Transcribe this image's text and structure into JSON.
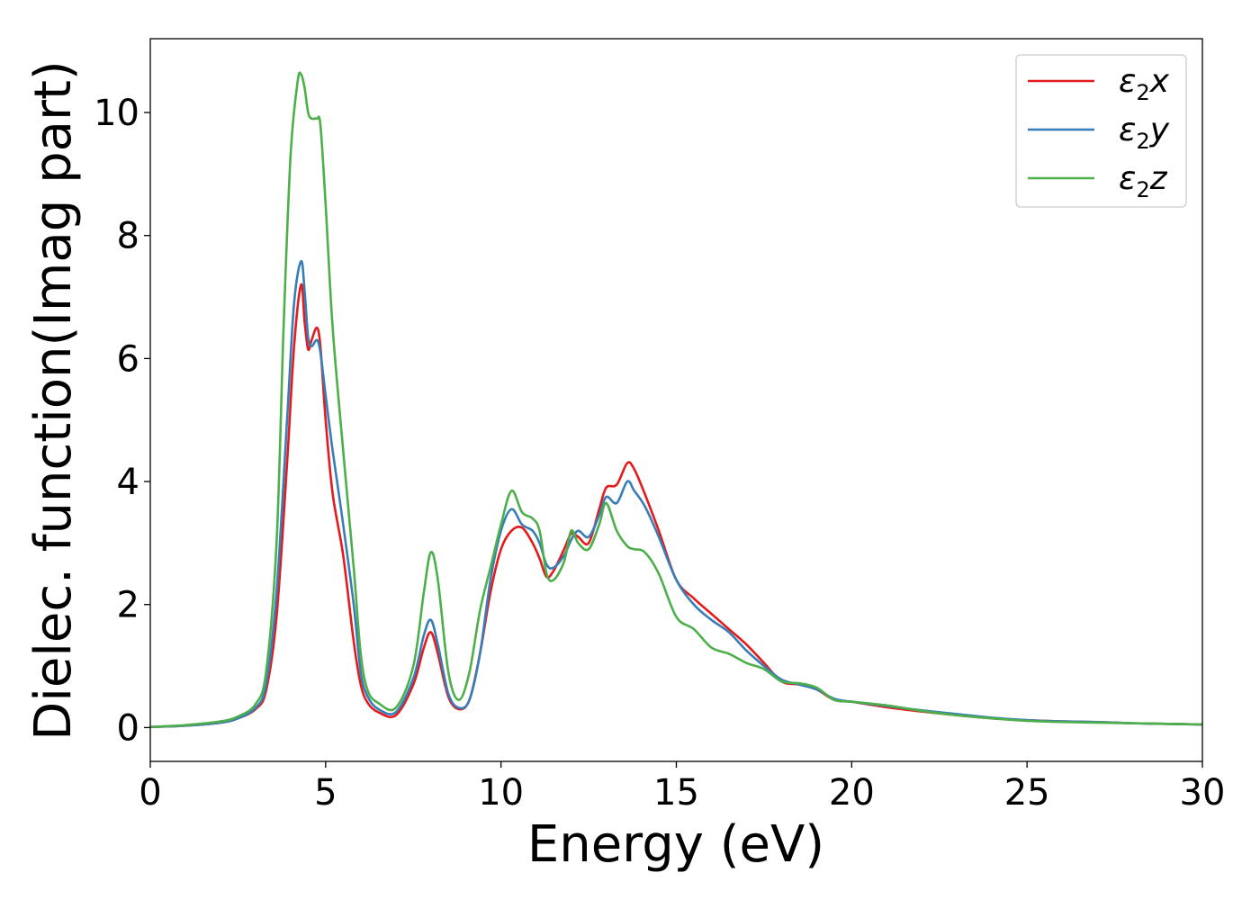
{
  "chart_data": {
    "type": "line",
    "title": "",
    "xlabel": "Energy (eV)",
    "ylabel": "Dielec. function(Imag part)",
    "xlim": [
      0,
      30
    ],
    "ylim": [
      -0.55,
      11.2
    ],
    "xticks": [
      0,
      5,
      10,
      15,
      20,
      25,
      30
    ],
    "yticks": [
      0,
      2,
      4,
      6,
      8,
      10
    ],
    "grid": false,
    "legend_position": "top-right",
    "series": [
      {
        "name": "ε₂x",
        "legend_base": "ε",
        "legend_sub": "2",
        "legend_axis": "x",
        "color": "#e41a1c",
        "x": [
          0,
          1,
          2,
          2.5,
          3,
          3.3,
          3.6,
          3.9,
          4.1,
          4.3,
          4.4,
          4.5,
          4.6,
          4.75,
          4.85,
          5,
          5.2,
          5.5,
          5.8,
          6,
          6.2,
          6.5,
          7,
          7.5,
          7.8,
          8,
          8.2,
          8.5,
          8.8,
          9.1,
          9.4,
          9.7,
          10,
          10.3,
          10.6,
          10.9,
          11.1,
          11.3,
          11.5,
          11.8,
          12,
          12.2,
          12.5,
          12.8,
          13,
          13.3,
          13.6,
          13.8,
          14.1,
          14.5,
          15,
          15.5,
          16,
          16.5,
          17,
          17.5,
          18,
          18.5,
          19,
          19.5,
          20,
          21,
          22,
          23,
          24,
          25,
          26,
          27,
          28,
          29,
          30
        ],
        "y": [
          0.01,
          0.03,
          0.08,
          0.15,
          0.3,
          0.6,
          1.8,
          4.3,
          6.2,
          7.2,
          6.6,
          6.15,
          6.3,
          6.5,
          6.2,
          5,
          3.8,
          2.8,
          1.4,
          0.7,
          0.4,
          0.25,
          0.2,
          0.7,
          1.3,
          1.55,
          1.2,
          0.5,
          0.3,
          0.45,
          1.2,
          2.2,
          2.9,
          3.2,
          3.25,
          3.0,
          2.75,
          2.45,
          2.55,
          2.9,
          3.15,
          3.1,
          3.0,
          3.55,
          3.9,
          3.95,
          4.3,
          4.2,
          3.8,
          3.2,
          2.4,
          2.1,
          1.85,
          1.6,
          1.35,
          1.05,
          0.75,
          0.7,
          0.62,
          0.45,
          0.42,
          0.33,
          0.26,
          0.2,
          0.15,
          0.12,
          0.1,
          0.09,
          0.07,
          0.06,
          0.05
        ]
      },
      {
        "name": "ε₂y",
        "legend_base": "ε",
        "legend_sub": "2",
        "legend_axis": "y",
        "color": "#377eb8",
        "x": [
          0,
          1,
          2,
          2.5,
          3,
          3.3,
          3.6,
          3.9,
          4.1,
          4.3,
          4.4,
          4.5,
          4.6,
          4.75,
          4.85,
          5,
          5.2,
          5.5,
          5.8,
          6,
          6.2,
          6.5,
          7,
          7.5,
          7.8,
          8,
          8.2,
          8.5,
          8.8,
          9.1,
          9.4,
          9.7,
          10,
          10.3,
          10.6,
          10.9,
          11.1,
          11.3,
          11.5,
          11.8,
          12,
          12.2,
          12.5,
          12.8,
          13,
          13.3,
          13.6,
          13.8,
          14.1,
          14.5,
          15,
          15.5,
          16,
          16.5,
          17,
          17.5,
          18,
          18.5,
          19,
          19.5,
          20,
          21,
          22,
          23,
          24,
          25,
          26,
          27,
          28,
          29,
          30
        ],
        "y": [
          0.01,
          0.03,
          0.08,
          0.15,
          0.32,
          0.7,
          2.2,
          5.0,
          6.9,
          7.58,
          7.1,
          6.35,
          6.2,
          6.3,
          6.1,
          5.4,
          4.5,
          3.3,
          2.0,
          0.9,
          0.5,
          0.3,
          0.25,
          0.8,
          1.5,
          1.75,
          1.35,
          0.55,
          0.32,
          0.45,
          1.2,
          2.4,
          3.2,
          3.55,
          3.3,
          3.2,
          3.0,
          2.65,
          2.6,
          2.8,
          3.05,
          3.2,
          3.1,
          3.45,
          3.75,
          3.65,
          4.0,
          3.85,
          3.6,
          3.1,
          2.4,
          2.0,
          1.75,
          1.55,
          1.25,
          1.0,
          0.78,
          0.7,
          0.62,
          0.47,
          0.42,
          0.35,
          0.28,
          0.22,
          0.16,
          0.12,
          0.1,
          0.09,
          0.07,
          0.06,
          0.05
        ]
      },
      {
        "name": "ε₂z",
        "legend_base": "ε",
        "legend_sub": "2",
        "legend_axis": "z",
        "color": "#4daf4a",
        "x": [
          0,
          1,
          2,
          2.5,
          3,
          3.3,
          3.6,
          3.8,
          4.0,
          4.2,
          4.3,
          4.4,
          4.5,
          4.6,
          4.75,
          4.85,
          5,
          5.2,
          5.5,
          5.8,
          6,
          6.2,
          6.5,
          7,
          7.5,
          7.8,
          8,
          8.2,
          8.5,
          8.8,
          9.1,
          9.4,
          9.7,
          10,
          10.3,
          10.6,
          10.9,
          11.1,
          11.3,
          11.5,
          11.8,
          12,
          12.2,
          12.5,
          12.8,
          13,
          13.3,
          13.6,
          13.8,
          14.1,
          14.5,
          15,
          15.5,
          16,
          16.5,
          17,
          17.5,
          18,
          18.5,
          19,
          19.5,
          20,
          21,
          22,
          23,
          24,
          25,
          26,
          27,
          28,
          29,
          30
        ],
        "y": [
          0.01,
          0.04,
          0.1,
          0.18,
          0.38,
          0.9,
          3.0,
          6.5,
          9.3,
          10.5,
          10.62,
          10.4,
          10.0,
          9.9,
          9.9,
          9.8,
          8.5,
          6.5,
          4.5,
          2.6,
          1.2,
          0.6,
          0.4,
          0.32,
          1.0,
          2.2,
          2.85,
          2.4,
          0.9,
          0.45,
          0.9,
          1.9,
          2.6,
          3.3,
          3.85,
          3.5,
          3.4,
          3.2,
          2.5,
          2.4,
          2.7,
          3.2,
          3.0,
          2.9,
          3.3,
          3.65,
          3.2,
          2.95,
          2.9,
          2.85,
          2.5,
          1.8,
          1.6,
          1.3,
          1.2,
          1.05,
          0.95,
          0.75,
          0.72,
          0.65,
          0.45,
          0.42,
          0.36,
          0.27,
          0.2,
          0.15,
          0.11,
          0.09,
          0.08,
          0.07,
          0.06,
          0.05
        ]
      }
    ]
  }
}
